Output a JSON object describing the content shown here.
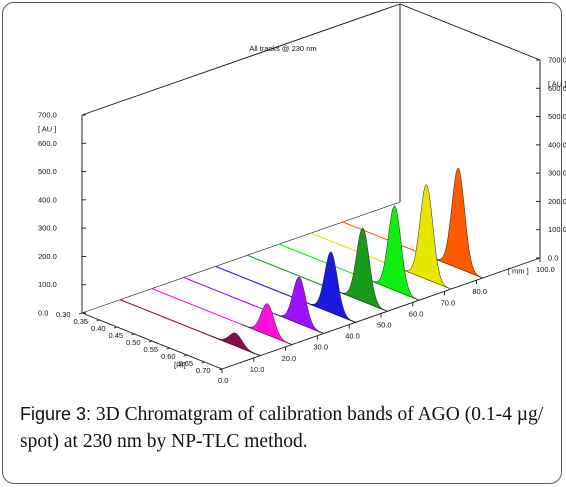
{
  "figure": {
    "caption_label": "Figure 3:",
    "caption_text": " 3D Chromatgram of calibration bands of AGO (0.1-4 µg/ spot) at 230 nm by NP-TLC method."
  },
  "chart_data": {
    "type": "area",
    "view": "3d-waterfall",
    "title": "All tracks @ 230 nm",
    "x_axis": {
      "label": "[Rf]",
      "ticks": [
        "0.30",
        "0.35",
        "0.40",
        "0.45",
        "0.50",
        "0.55",
        "0.60",
        "0.65",
        "0.70"
      ],
      "range": [
        0.3,
        0.7
      ]
    },
    "y_axis": {
      "label": "[ AU ]",
      "ticks": [
        "0.0",
        "100.0",
        "200.0",
        "300.0",
        "400.0",
        "500.0",
        "600.0",
        "700.0"
      ],
      "range": [
        0,
        700
      ]
    },
    "y_axis_right": {
      "label": "[ AU ]",
      "ticks": [
        "0.0",
        "100.0",
        "200.0",
        "300.0",
        "400.0",
        "500.0",
        "600.0",
        "700.0"
      ]
    },
    "z_axis": {
      "label": "[ mm ]",
      "ticks": [
        "0.0",
        "10.0",
        "20.0",
        "30.0",
        "40.0",
        "50.0",
        "60.0",
        "70.0",
        "80.0",
        "100.0"
      ],
      "range": [
        0,
        100
      ]
    },
    "peak_rf": 0.63,
    "tracks": [
      {
        "color": "#8b0a4e",
        "peak": 45
      },
      {
        "color": "#ff10d8",
        "peak": 110
      },
      {
        "color": "#9b10ff",
        "peak": 165
      },
      {
        "color": "#1a1adf",
        "peak": 215
      },
      {
        "color": "#1a9a1a",
        "peak": 260
      },
      {
        "color": "#10ef10",
        "peak": 300
      },
      {
        "color": "#e6e600",
        "peak": 335
      },
      {
        "color": "#ff5a00",
        "peak": 355
      }
    ]
  }
}
